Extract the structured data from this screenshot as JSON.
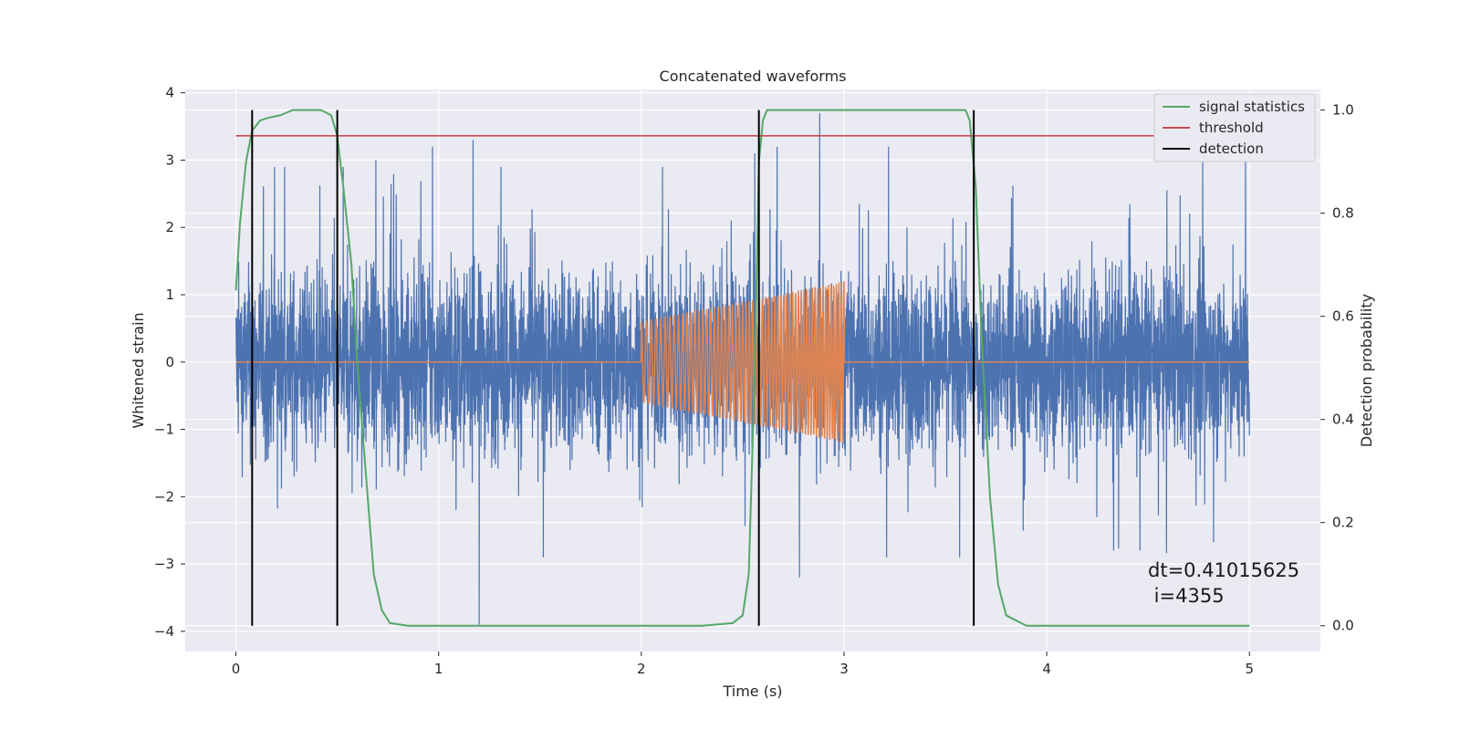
{
  "chart_data": {
    "type": "line",
    "title": "Concatenated waveforms",
    "xlabel": "Time (s)",
    "ylabel": "Whitened strain",
    "y2label": "Detection probability",
    "xlim": [
      -0.25,
      5.35
    ],
    "ylim": [
      -4.3,
      4.05
    ],
    "y2lim": [
      -0.05,
      1.04
    ],
    "x_ticks": [
      0,
      1,
      2,
      3,
      4,
      5
    ],
    "y_ticks": [
      -4,
      -3,
      -2,
      -1,
      0,
      1,
      2,
      3,
      4
    ],
    "y2_ticks": [
      0.0,
      0.2,
      0.4,
      0.6,
      0.8,
      1.0
    ],
    "x_tick_labels": [
      "0",
      "1",
      "2",
      "3",
      "4",
      "5"
    ],
    "y_tick_labels": [
      "−4",
      "−3",
      "−2",
      "−1",
      "0",
      "1",
      "2",
      "3",
      "4"
    ],
    "y2_tick_labels": [
      "0.0",
      "0.2",
      "0.4",
      "0.6",
      "0.8",
      "1.0"
    ],
    "grid": true,
    "legend_position": "top-right",
    "series": [
      {
        "role": "noisy strain",
        "axis": "left",
        "color": "#4c72b0",
        "x_range": [
          0,
          5
        ],
        "sample_rate": 1024,
        "typical_amplitude": 1.2,
        "notable_spikes": [
          {
            "x": 0.08,
            "y": 2.1
          },
          {
            "x": 0.5,
            "y": 2.7
          },
          {
            "x": 0.19,
            "y": 2.9
          },
          {
            "x": 0.24,
            "y": 2.9
          },
          {
            "x": 1.2,
            "y": -3.9
          },
          {
            "x": 1.17,
            "y": 3.3
          },
          {
            "x": 0.97,
            "y": 3.2
          },
          {
            "x": 0.69,
            "y": 3.0
          },
          {
            "x": 2.88,
            "y": 3.7
          },
          {
            "x": 2.67,
            "y": 3.2
          },
          {
            "x": 2.56,
            "y": 3.1
          },
          {
            "x": 2.78,
            "y": -3.2
          },
          {
            "x": 3.22,
            "y": 3.2
          },
          {
            "x": 3.57,
            "y": -2.9
          },
          {
            "x": 4.77,
            "y": 3.0
          },
          {
            "x": 4.98,
            "y": 3.0
          },
          {
            "x": 4.33,
            "y": -2.8
          },
          {
            "x": 4.46,
            "y": -2.8
          }
        ]
      },
      {
        "role": "injected signal",
        "axis": "left",
        "color": "#dd8452",
        "x_range": [
          0,
          5
        ],
        "chirp_start": 2.0,
        "chirp_end": 3.0,
        "amplitude_start": 0.6,
        "amplitude_end": 1.2,
        "freq_start": 40,
        "freq_end": 80
      },
      {
        "name": "signal statistics",
        "axis": "right",
        "color": "#55a868",
        "x": [
          0.0,
          0.02,
          0.05,
          0.08,
          0.12,
          0.16,
          0.22,
          0.28,
          0.35,
          0.42,
          0.47,
          0.5,
          0.53,
          0.57,
          0.6,
          0.65,
          0.68,
          0.72,
          0.76,
          0.85,
          1.0,
          1.5,
          2.0,
          2.3,
          2.45,
          2.5,
          2.53,
          2.56,
          2.58,
          2.6,
          2.62,
          2.66,
          2.8,
          3.0,
          3.3,
          3.6,
          3.62,
          3.65,
          3.68,
          3.72,
          3.76,
          3.8,
          3.9,
          4.2,
          4.5,
          5.0
        ],
        "y": [
          0.65,
          0.78,
          0.9,
          0.96,
          0.98,
          0.985,
          0.99,
          1.0,
          1.0,
          1.0,
          0.99,
          0.95,
          0.85,
          0.7,
          0.5,
          0.25,
          0.1,
          0.03,
          0.005,
          0.0,
          0.0,
          0.0,
          0.0,
          0.0,
          0.005,
          0.02,
          0.1,
          0.5,
          0.9,
          0.98,
          1.0,
          1.0,
          1.0,
          1.0,
          1.0,
          1.0,
          0.98,
          0.85,
          0.55,
          0.25,
          0.08,
          0.02,
          0.0,
          0.0,
          0.0,
          0.0
        ]
      },
      {
        "name": "threshold",
        "axis": "right",
        "color": "#c44e52",
        "x": [
          0.0,
          5.1
        ],
        "y": [
          0.95,
          0.95
        ]
      },
      {
        "name": "detection",
        "axis": "right",
        "color": "#000000",
        "vlines": [
          0.08,
          0.5,
          2.58,
          3.64
        ],
        "ymin": 0.0,
        "ymax": 1.0
      }
    ],
    "annotations": [
      {
        "text": "dt=0.41015625",
        "x": 4.5,
        "y": -3.0
      },
      {
        "text": " i=4355",
        "x": 4.5,
        "y": -3.4
      }
    ],
    "colors": {
      "axes_bg": "#eaeaf2",
      "grid": "#ffffff",
      "text": "#262626"
    }
  }
}
